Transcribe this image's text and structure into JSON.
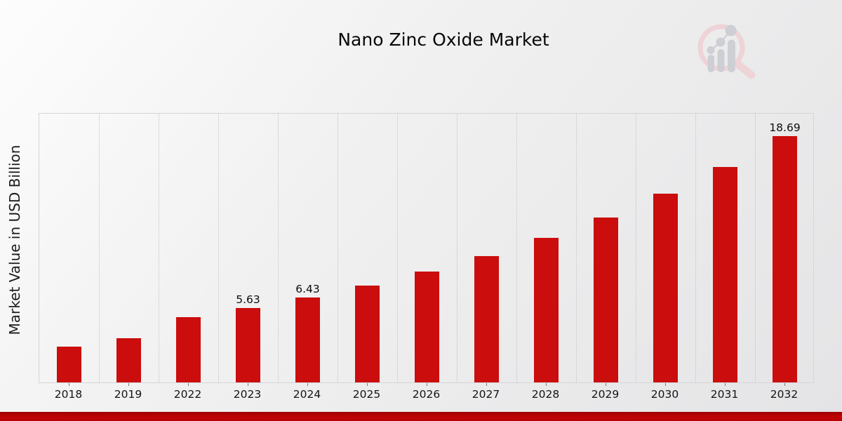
{
  "title": "Nano Zinc Oxide Market",
  "y_axis": {
    "label": "Market Value in USD Billion"
  },
  "x_axis": {
    "tick_labels": [
      "2018",
      "2019",
      "2022",
      "2023",
      "2024",
      "2025",
      "2026",
      "2027",
      "2028",
      "2029",
      "2030",
      "2031",
      "2032"
    ]
  },
  "colors": {
    "bar": "#cb0d0d",
    "bottom_accent_bar": "#b80202",
    "gridline": "#c5c5c7",
    "background_light": "#fdfdfd",
    "background_dark": "#e4e4e6",
    "logo_pink": "#eed3d7",
    "logo_gray": "#cdcfd4"
  },
  "chart_data": {
    "type": "bar",
    "title": "Nano Zinc Oxide Market",
    "xlabel": "",
    "ylabel": "Market Value in USD Billion",
    "categories": [
      "2018",
      "2019",
      "2022",
      "2023",
      "2024",
      "2025",
      "2026",
      "2027",
      "2028",
      "2029",
      "2030",
      "2031",
      "2032"
    ],
    "values": [
      2.73,
      3.35,
      4.95,
      5.63,
      6.43,
      7.35,
      8.4,
      9.6,
      10.97,
      12.53,
      14.32,
      16.36,
      18.69
    ],
    "data_labels": [
      "",
      "",
      "",
      "5.63",
      "6.43",
      "",
      "",
      "",
      "",
      "",
      "",
      "",
      "18.69"
    ],
    "ylim": [
      0,
      20.5
    ],
    "grid": "vertical-dotted",
    "legend": "none",
    "bar_color": "#cb0d0d"
  }
}
